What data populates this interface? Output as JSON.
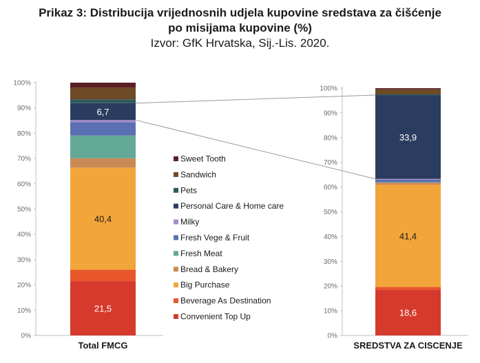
{
  "header": {
    "title_line1": "Prikaz 3: Distribucija vrijednosnih udjela kupovine sredstava za čišćenje",
    "title_line2": "po misijama kupovine (%)",
    "source": "Izvor: GfK Hrvatska, Sij.-Lis. 2020."
  },
  "chart_data": {
    "type": "bar",
    "stacked": true,
    "title": "Prikaz 3: Distribucija vrijednosnih udjela kupovine sredstava za čišćenje po misijama kupovine (%)",
    "subtitle": "Izvor: GfK Hrvatska, Sij.-Lis. 2020.",
    "categories": [
      "Total FMCG",
      "SREDSTVA ZA CISCENJE"
    ],
    "ylim": [
      0,
      100
    ],
    "ytick_labels": [
      "0%",
      "10%",
      "20%",
      "30%",
      "40%",
      "50%",
      "60%",
      "70%",
      "80%",
      "90%",
      "100%"
    ],
    "legend_position": "center",
    "series": [
      {
        "name": "Convenient Top Up",
        "color": "#d63a2c",
        "values": [
          21.5,
          18.6
        ],
        "labels": [
          "21,5",
          "18,6"
        ]
      },
      {
        "name": "Beverage As Destination",
        "color": "#e8572a",
        "values": [
          4.5,
          1.0
        ],
        "labels": [
          "",
          ""
        ]
      },
      {
        "name": "Big Purchase",
        "color": "#f2a53a",
        "values": [
          40.4,
          41.4
        ],
        "labels": [
          "40,4",
          "41,4"
        ]
      },
      {
        "name": "Bread & Bakery",
        "color": "#c98a56",
        "values": [
          3.7,
          0.8
        ],
        "labels": [
          "",
          ""
        ]
      },
      {
        "name": "Fresh Meat",
        "color": "#64a896",
        "values": [
          9.0,
          0.2
        ],
        "labels": [
          "",
          ""
        ]
      },
      {
        "name": "Fresh Vege & Fruit",
        "color": "#5b6fb3",
        "values": [
          5.3,
          1.0
        ],
        "labels": [
          "",
          ""
        ]
      },
      {
        "name": "Milky",
        "color": "#a88ec9",
        "values": [
          0.8,
          0.3
        ],
        "labels": [
          "",
          ""
        ]
      },
      {
        "name": "Personal Care & Home care",
        "color": "#2b3d5e",
        "values": [
          6.7,
          33.9
        ],
        "labels": [
          "6,7",
          "33,9"
        ]
      },
      {
        "name": "Pets",
        "color": "#2e5a5e",
        "values": [
          1.5,
          0.3
        ],
        "labels": [
          "",
          ""
        ]
      },
      {
        "name": "Sandwich",
        "color": "#6e4a26",
        "values": [
          4.6,
          2.0
        ],
        "labels": [
          "",
          ""
        ]
      },
      {
        "name": "Sweet Tooth",
        "color": "#5a1f25",
        "values": [
          2.0,
          0.5
        ],
        "labels": [
          "",
          ""
        ]
      }
    ]
  }
}
